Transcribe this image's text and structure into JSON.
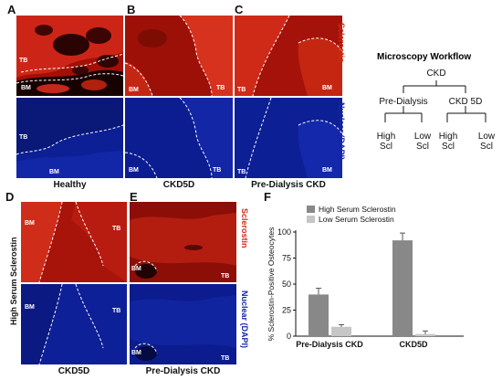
{
  "panel_letters": [
    "A",
    "B",
    "C",
    "D",
    "E",
    "F"
  ],
  "top_row": {
    "captions": [
      "Healthy",
      "CKD5D",
      "Pre-Dialysis CKD"
    ],
    "side_red": "Sclerostin",
    "side_blue": "Nuclear (DAPI)",
    "labels": {
      "a_red_tb": "TB",
      "a_red_bm": "BM",
      "a_blue_tb": "TB",
      "a_blue_bm": "BM",
      "b_red_bm": "BM",
      "b_red_tb": "TB",
      "b_blue_bm": "BM",
      "b_blue_tb": "TB",
      "c_red_tb": "TB",
      "c_red_bm": "BM",
      "c_blue_tb": "TB",
      "c_blue_bm": "BM"
    }
  },
  "bottom_row": {
    "left_vertical": "High Serum Sclerostin",
    "captions": [
      "CKD5D",
      "Pre-Dialysis CKD"
    ],
    "side_red": "Sclerostin",
    "side_blue": "Nuclear (DAPI)",
    "labels": {
      "d_red_bm": "BM",
      "d_red_tb": "TB",
      "d_blue_bm": "BM",
      "d_blue_tb": "TB",
      "e_red_bm": "BM",
      "e_red_tb": "TB",
      "e_blue_bm": "BM",
      "e_blue_tb": "TB"
    }
  },
  "workflow": {
    "title": "Microscopy Workflow",
    "root": "CKD",
    "left": "Pre-Dialysis",
    "right": "CKD 5D",
    "leaves": [
      "High\nScl",
      "Low\nScl",
      "High\nScl",
      "Low\nScl"
    ]
  },
  "colors": {
    "sclerostin_red": "#d42a12",
    "dapi_blue": "#1524a8",
    "high_bar": "#888888",
    "low_bar": "#c6c6c6"
  },
  "chart_data": {
    "type": "bar",
    "categories": [
      "Pre-Dialysis CKD",
      "CKD5D"
    ],
    "series": [
      {
        "name": "High Serum Sclerostin",
        "values": [
          40,
          92
        ],
        "errors": [
          6,
          7
        ]
      },
      {
        "name": "Low Serum Sclerostin",
        "values": [
          9,
          2
        ],
        "errors": [
          2,
          3
        ]
      }
    ],
    "ylabel": "% Sclerostin-Positive Osteocytes",
    "ylim": [
      0,
      100
    ],
    "yticks": [
      "0",
      "25",
      "50",
      "75",
      "100"
    ],
    "legend": "top-right",
    "grid": false
  }
}
